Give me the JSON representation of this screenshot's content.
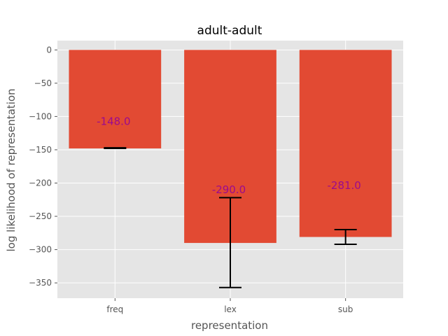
{
  "chart_data": {
    "type": "bar",
    "title": "adult-adult",
    "xlabel": "representation",
    "ylabel": "log likelihood of representation",
    "categories": [
      "freq",
      "lex",
      "sub"
    ],
    "values": [
      -148.0,
      -290.0,
      -281.0
    ],
    "value_labels": [
      "-148.0",
      "-290.0",
      "-281.0"
    ],
    "error_bars": [
      {
        "low": -148.0,
        "high": -147.0
      },
      {
        "low": -357.0,
        "high": -222.0
      },
      {
        "low": -292.0,
        "high": -270.0
      }
    ],
    "ylim": [
      -373,
      14
    ],
    "yticks": [
      0,
      -50,
      -100,
      -150,
      -200,
      -250,
      -300,
      -350
    ],
    "ytick_labels": [
      "0",
      "−50",
      "−100",
      "−150",
      "−200",
      "−250",
      "−300",
      "−350"
    ],
    "grid": true,
    "bar_color": "#e24a33",
    "error_color": "#000000",
    "label_color": "#9b0b8e",
    "plot_background": "#e5e5e5"
  }
}
